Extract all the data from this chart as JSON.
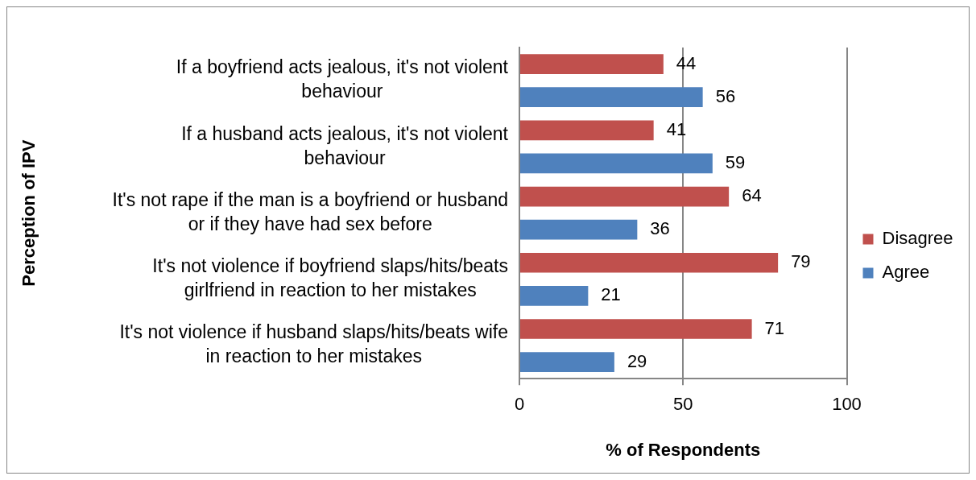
{
  "chart_data": {
    "type": "bar",
    "orientation": "horizontal",
    "xlabel": "% of Respondents",
    "ylabel": "Perception of IPV",
    "categories": [
      "If a boyfriend acts jealous, it's not violent behaviour",
      "If a husband acts jealous, it's not violent behaviour",
      "It's not rape if the man is a boyfriend or husband or if they have had sex before",
      "It's not violence if boyfriend slaps/hits/beats girlfriend in reaction to her mistakes",
      "It's not violence if husband slaps/hits/beats wife in reaction to her mistakes"
    ],
    "series": [
      {
        "name": "Disagree",
        "color": "#c0504d",
        "values": [
          44,
          41,
          64,
          79,
          71
        ]
      },
      {
        "name": "Agree",
        "color": "#4f81bd",
        "values": [
          56,
          59,
          36,
          21,
          29
        ]
      }
    ],
    "xlim": [
      0,
      100
    ],
    "xticks": [
      0,
      50,
      100
    ],
    "grid": "x",
    "legend": "right",
    "data_labels": true
  }
}
